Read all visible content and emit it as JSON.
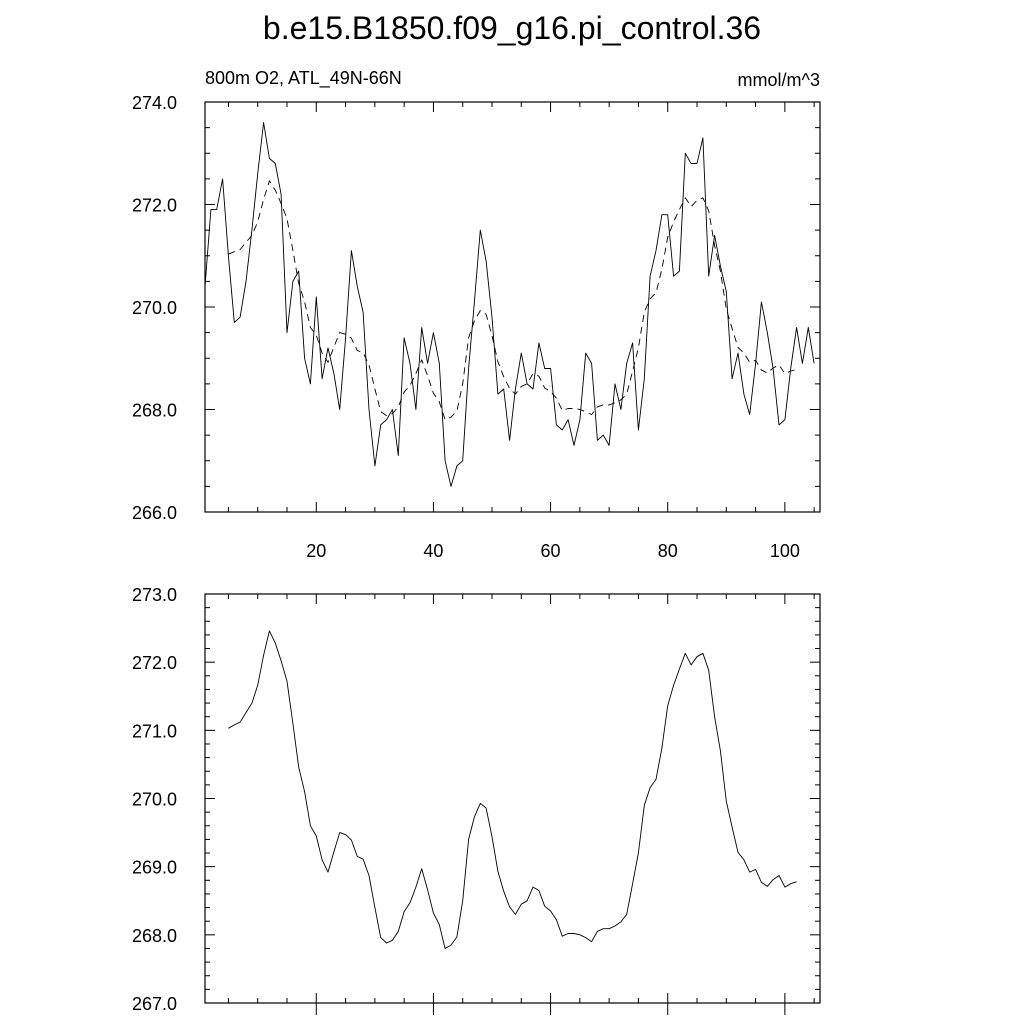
{
  "title": "b.e15.B1850.f09_g16.pi_control.36",
  "colors": {
    "line": "#000000",
    "background": "#ffffff"
  },
  "chart_data": [
    {
      "type": "line",
      "left_label": "800m O2, ATL_49N-66N",
      "right_label": "mmol/m^3",
      "xlim": [
        1,
        106
      ],
      "ylim": [
        266,
        274
      ],
      "x_ticks": [
        20,
        40,
        60,
        80,
        100
      ],
      "y_ticks": [
        266,
        268,
        270,
        272,
        274
      ],
      "y_tick_labels": [
        "266.0",
        "268.0",
        "270.0",
        "272.0",
        "274.0"
      ],
      "x_minor_step": 5,
      "y_minor_step": 0.5,
      "x_tick_labels_shown": true,
      "grid": false,
      "series": [
        {
          "style": "solid",
          "x_start": 1,
          "x_step": 1,
          "values": [
            270.4,
            271.9,
            271.9,
            272.5,
            271.0,
            269.7,
            269.8,
            270.5,
            271.5,
            272.6,
            273.6,
            272.9,
            272.8,
            272.2,
            269.5,
            270.5,
            270.7,
            269.0,
            268.5,
            270.2,
            268.6,
            269.2,
            268.7,
            268.0,
            269.4,
            271.1,
            270.4,
            269.9,
            268.0,
            266.9,
            267.7,
            267.8,
            268.0,
            267.1,
            269.4,
            268.9,
            268.0,
            269.6,
            268.9,
            269.5,
            268.9,
            267.0,
            266.5,
            266.9,
            267.0,
            268.8,
            270.1,
            271.5,
            270.9,
            269.8,
            268.3,
            268.4,
            267.4,
            268.4,
            269.1,
            268.5,
            268.4,
            269.3,
            268.8,
            268.8,
            267.7,
            267.6,
            267.8,
            267.3,
            267.8,
            269.1,
            268.9,
            267.4,
            267.5,
            267.3,
            268.5,
            268.0,
            268.9,
            269.3,
            267.6,
            268.6,
            270.6,
            271.1,
            271.8,
            271.8,
            270.6,
            270.7,
            273.0,
            272.8,
            272.8,
            273.3,
            270.6,
            271.4,
            270.8,
            270.3,
            268.6,
            269.1,
            268.3,
            267.9,
            268.9,
            270.1,
            269.5,
            268.8,
            267.7,
            267.8,
            268.8,
            269.6,
            268.9,
            269.6,
            268.9
          ]
        },
        {
          "style": "dashed",
          "x_start": 5,
          "x_step": 1,
          "values": [
            271.03,
            271.08,
            271.12,
            271.26,
            271.4,
            271.66,
            272.1,
            272.46,
            272.28,
            272.02,
            271.72,
            271.1,
            270.46,
            270.1,
            269.6,
            269.45,
            269.1,
            268.92,
            269.22,
            269.5,
            269.47,
            269.39,
            269.15,
            269.11,
            268.87,
            268.4,
            267.96,
            267.88,
            267.92,
            268.05,
            268.34,
            268.47,
            268.7,
            268.97,
            268.66,
            268.32,
            268.15,
            267.8,
            267.85,
            267.97,
            268.5,
            269.4,
            269.73,
            269.93,
            269.86,
            269.44,
            268.93,
            268.64,
            268.41,
            268.3,
            268.45,
            268.5,
            268.7,
            268.65,
            268.42,
            268.35,
            268.22,
            267.98,
            268.02,
            268.02,
            268.0,
            267.96,
            267.9,
            268.05,
            268.09,
            268.09,
            268.13,
            268.19,
            268.3,
            268.75,
            269.2,
            269.9,
            270.16,
            270.28,
            270.74,
            271.36,
            271.66,
            271.9,
            272.13,
            271.96,
            272.08,
            272.13,
            271.88,
            271.2,
            270.7,
            269.96,
            269.58,
            269.21,
            269.1,
            268.92,
            268.96,
            268.77,
            268.71,
            268.81,
            268.87,
            268.7,
            268.75,
            268.78
          ]
        }
      ]
    },
    {
      "type": "line",
      "xlim": [
        1,
        106
      ],
      "ylim": [
        267,
        273
      ],
      "x_ticks": [
        20,
        40,
        60,
        80,
        100
      ],
      "y_ticks": [
        267,
        268,
        269,
        270,
        271,
        272,
        273
      ],
      "y_tick_labels": [
        "267.0",
        "268.0",
        "269.0",
        "270.0",
        "271.0",
        "272.0",
        "273.0"
      ],
      "x_minor_step": 5,
      "y_minor_step": 0.2,
      "x_tick_labels_shown": false,
      "grid": false,
      "series": [
        {
          "style": "solid",
          "x_start": 5,
          "x_step": 1,
          "values": [
            271.03,
            271.08,
            271.12,
            271.26,
            271.4,
            271.66,
            272.1,
            272.46,
            272.28,
            272.02,
            271.72,
            271.1,
            270.46,
            270.1,
            269.6,
            269.45,
            269.1,
            268.92,
            269.22,
            269.5,
            269.47,
            269.39,
            269.15,
            269.11,
            268.87,
            268.4,
            267.96,
            267.88,
            267.92,
            268.05,
            268.34,
            268.47,
            268.7,
            268.97,
            268.66,
            268.32,
            268.15,
            267.8,
            267.85,
            267.97,
            268.5,
            269.4,
            269.73,
            269.93,
            269.86,
            269.44,
            268.93,
            268.64,
            268.41,
            268.3,
            268.45,
            268.5,
            268.7,
            268.65,
            268.42,
            268.35,
            268.22,
            267.98,
            268.02,
            268.02,
            268.0,
            267.96,
            267.9,
            268.05,
            268.09,
            268.09,
            268.13,
            268.19,
            268.3,
            268.75,
            269.2,
            269.9,
            270.16,
            270.28,
            270.74,
            271.36,
            271.66,
            271.9,
            272.13,
            271.96,
            272.08,
            272.13,
            271.88,
            271.2,
            270.7,
            269.96,
            269.58,
            269.21,
            269.1,
            268.92,
            268.96,
            268.77,
            268.71,
            268.81,
            268.87,
            268.7,
            268.75,
            268.78
          ]
        }
      ]
    }
  ]
}
